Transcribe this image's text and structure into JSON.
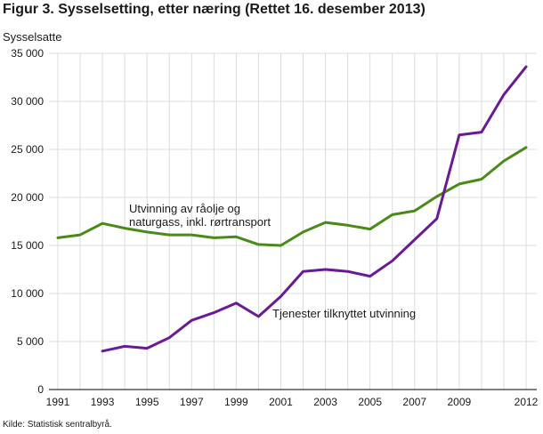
{
  "header": {
    "title": "Figur 3. Sysselsetting, etter næring (Rettet 16. desember 2013)",
    "y_axis_title": "Sysselsatte"
  },
  "footer": {
    "source": "Kilde: Statistisk sentralbyrå."
  },
  "colors": {
    "series1": "#4a8a17",
    "series2": "#6a1a94",
    "grid": "#dcdcdc",
    "axis": "#000000"
  },
  "chart_data": {
    "type": "line",
    "title": "Figur 3. Sysselsetting, etter næring (Rettet 16. desember 2013)",
    "xlabel": "",
    "ylabel": "Sysselsatte",
    "ylim": [
      0,
      35000
    ],
    "xlim": [
      1991,
      2012
    ],
    "grid": true,
    "y_ticks": [
      0,
      5000,
      10000,
      15000,
      20000,
      25000,
      30000,
      35000
    ],
    "y_tick_labels": [
      "0",
      "5 000",
      "10 000",
      "15 000",
      "20 000",
      "25 000",
      "30 000",
      "35 000"
    ],
    "x_ticks": [
      1991,
      1993,
      1995,
      1997,
      1999,
      2001,
      2003,
      2005,
      2007,
      2009,
      2012
    ],
    "x_tick_labels": [
      "1991",
      "1993",
      "1995",
      "1997",
      "1999",
      "2001",
      "2003",
      "2005",
      "2007",
      "2009",
      "2012"
    ],
    "series": [
      {
        "name": "Utvinning av råolje og naturgass, inkl. rørtransport",
        "label_lines": [
          "Utvinning av råolje og",
          "naturgass, inkl. rørtransport"
        ],
        "color": "#4a8a17",
        "x": [
          1991,
          1992,
          1993,
          1994,
          1995,
          1996,
          1997,
          1998,
          1999,
          2000,
          2001,
          2002,
          2003,
          2004,
          2005,
          2006,
          2007,
          2008,
          2009,
          2010,
          2011,
          2012
        ],
        "values": [
          15800,
          16100,
          17300,
          16800,
          16400,
          16100,
          16100,
          15800,
          15900,
          15100,
          15000,
          16400,
          17400,
          17100,
          16700,
          18200,
          18600,
          20100,
          21400,
          21900,
          23800,
          25200
        ]
      },
      {
        "name": "Tjenester tilknyttet utvinning",
        "label_lines": [
          "Tjenester tilknyttet utvinning"
        ],
        "color": "#6a1a94",
        "x": [
          1993,
          1994,
          1995,
          1996,
          1997,
          1998,
          1999,
          2000,
          2001,
          2002,
          2003,
          2004,
          2005,
          2006,
          2007,
          2008,
          2009,
          2010,
          2011,
          2012
        ],
        "values": [
          4000,
          4500,
          4300,
          5400,
          7200,
          8000,
          9000,
          7600,
          9700,
          12300,
          12500,
          12300,
          11800,
          13400,
          15600,
          17800,
          26500,
          26800,
          30700,
          33600
        ]
      }
    ]
  }
}
